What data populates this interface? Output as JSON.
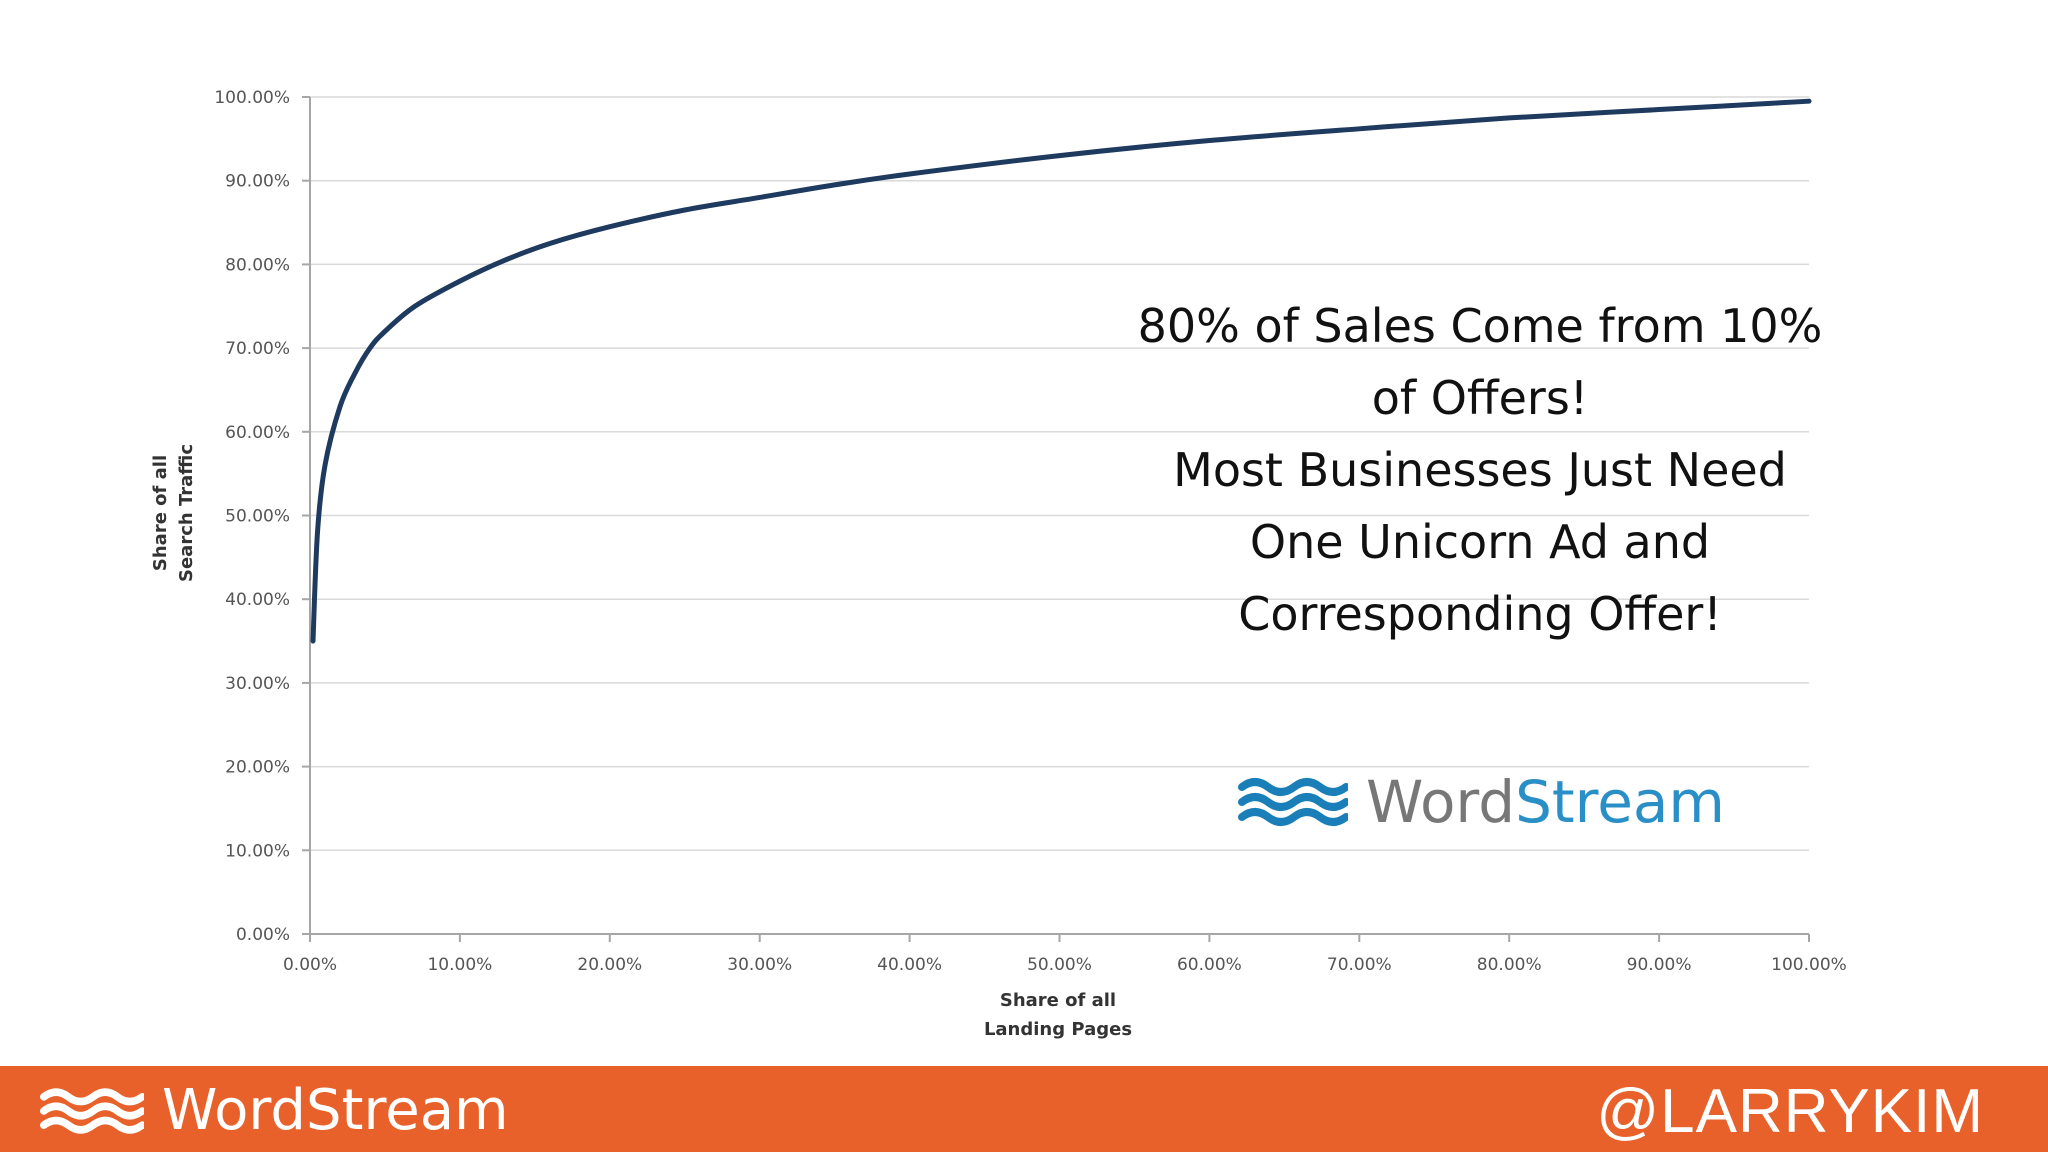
{
  "chart_data": {
    "type": "line",
    "xlabel_lines": [
      "Share of all",
      "Landing Pages"
    ],
    "ylabel_lines": [
      "Share of all",
      "Search Traffic"
    ],
    "xlim": [
      0,
      100
    ],
    "ylim": [
      0,
      100
    ],
    "x_ticks": [
      "0.00%",
      "10.00%",
      "20.00%",
      "30.00%",
      "40.00%",
      "50.00%",
      "60.00%",
      "70.00%",
      "80.00%",
      "90.00%",
      "100.00%"
    ],
    "y_ticks": [
      "0.00%",
      "10.00%",
      "20.00%",
      "30.00%",
      "40.00%",
      "50.00%",
      "60.00%",
      "70.00%",
      "80.00%",
      "90.00%",
      "100.00%"
    ],
    "grid": "horizontal",
    "series": [
      {
        "color": "#1f3a5f",
        "x": [
          0.2,
          0.5,
          1,
          2,
          3,
          4,
          5,
          7,
          10,
          13,
          16,
          20,
          25,
          30,
          35,
          40,
          50,
          60,
          70,
          80,
          90,
          100
        ],
        "y": [
          35,
          48,
          56,
          63,
          67,
          70,
          72,
          75,
          78,
          80.5,
          82.5,
          84.5,
          86.5,
          88,
          89.5,
          90.8,
          93,
          94.8,
          96.2,
          97.5,
          98.5,
          99.5
        ]
      }
    ]
  },
  "annotation": {
    "lines": [
      "80% of Sales Come from 10%",
      "of Offers!",
      "Most Businesses Just Need",
      "One Unicorn Ad and",
      "Corresponding Offer!"
    ]
  },
  "logo": {
    "word_a": "Word",
    "word_b": "Stream",
    "icon": "waves-icon"
  },
  "footer": {
    "background": "#e8612a",
    "logo_text": "WordStream",
    "handle": "@LARRYKIM",
    "icon": "waves-icon"
  }
}
